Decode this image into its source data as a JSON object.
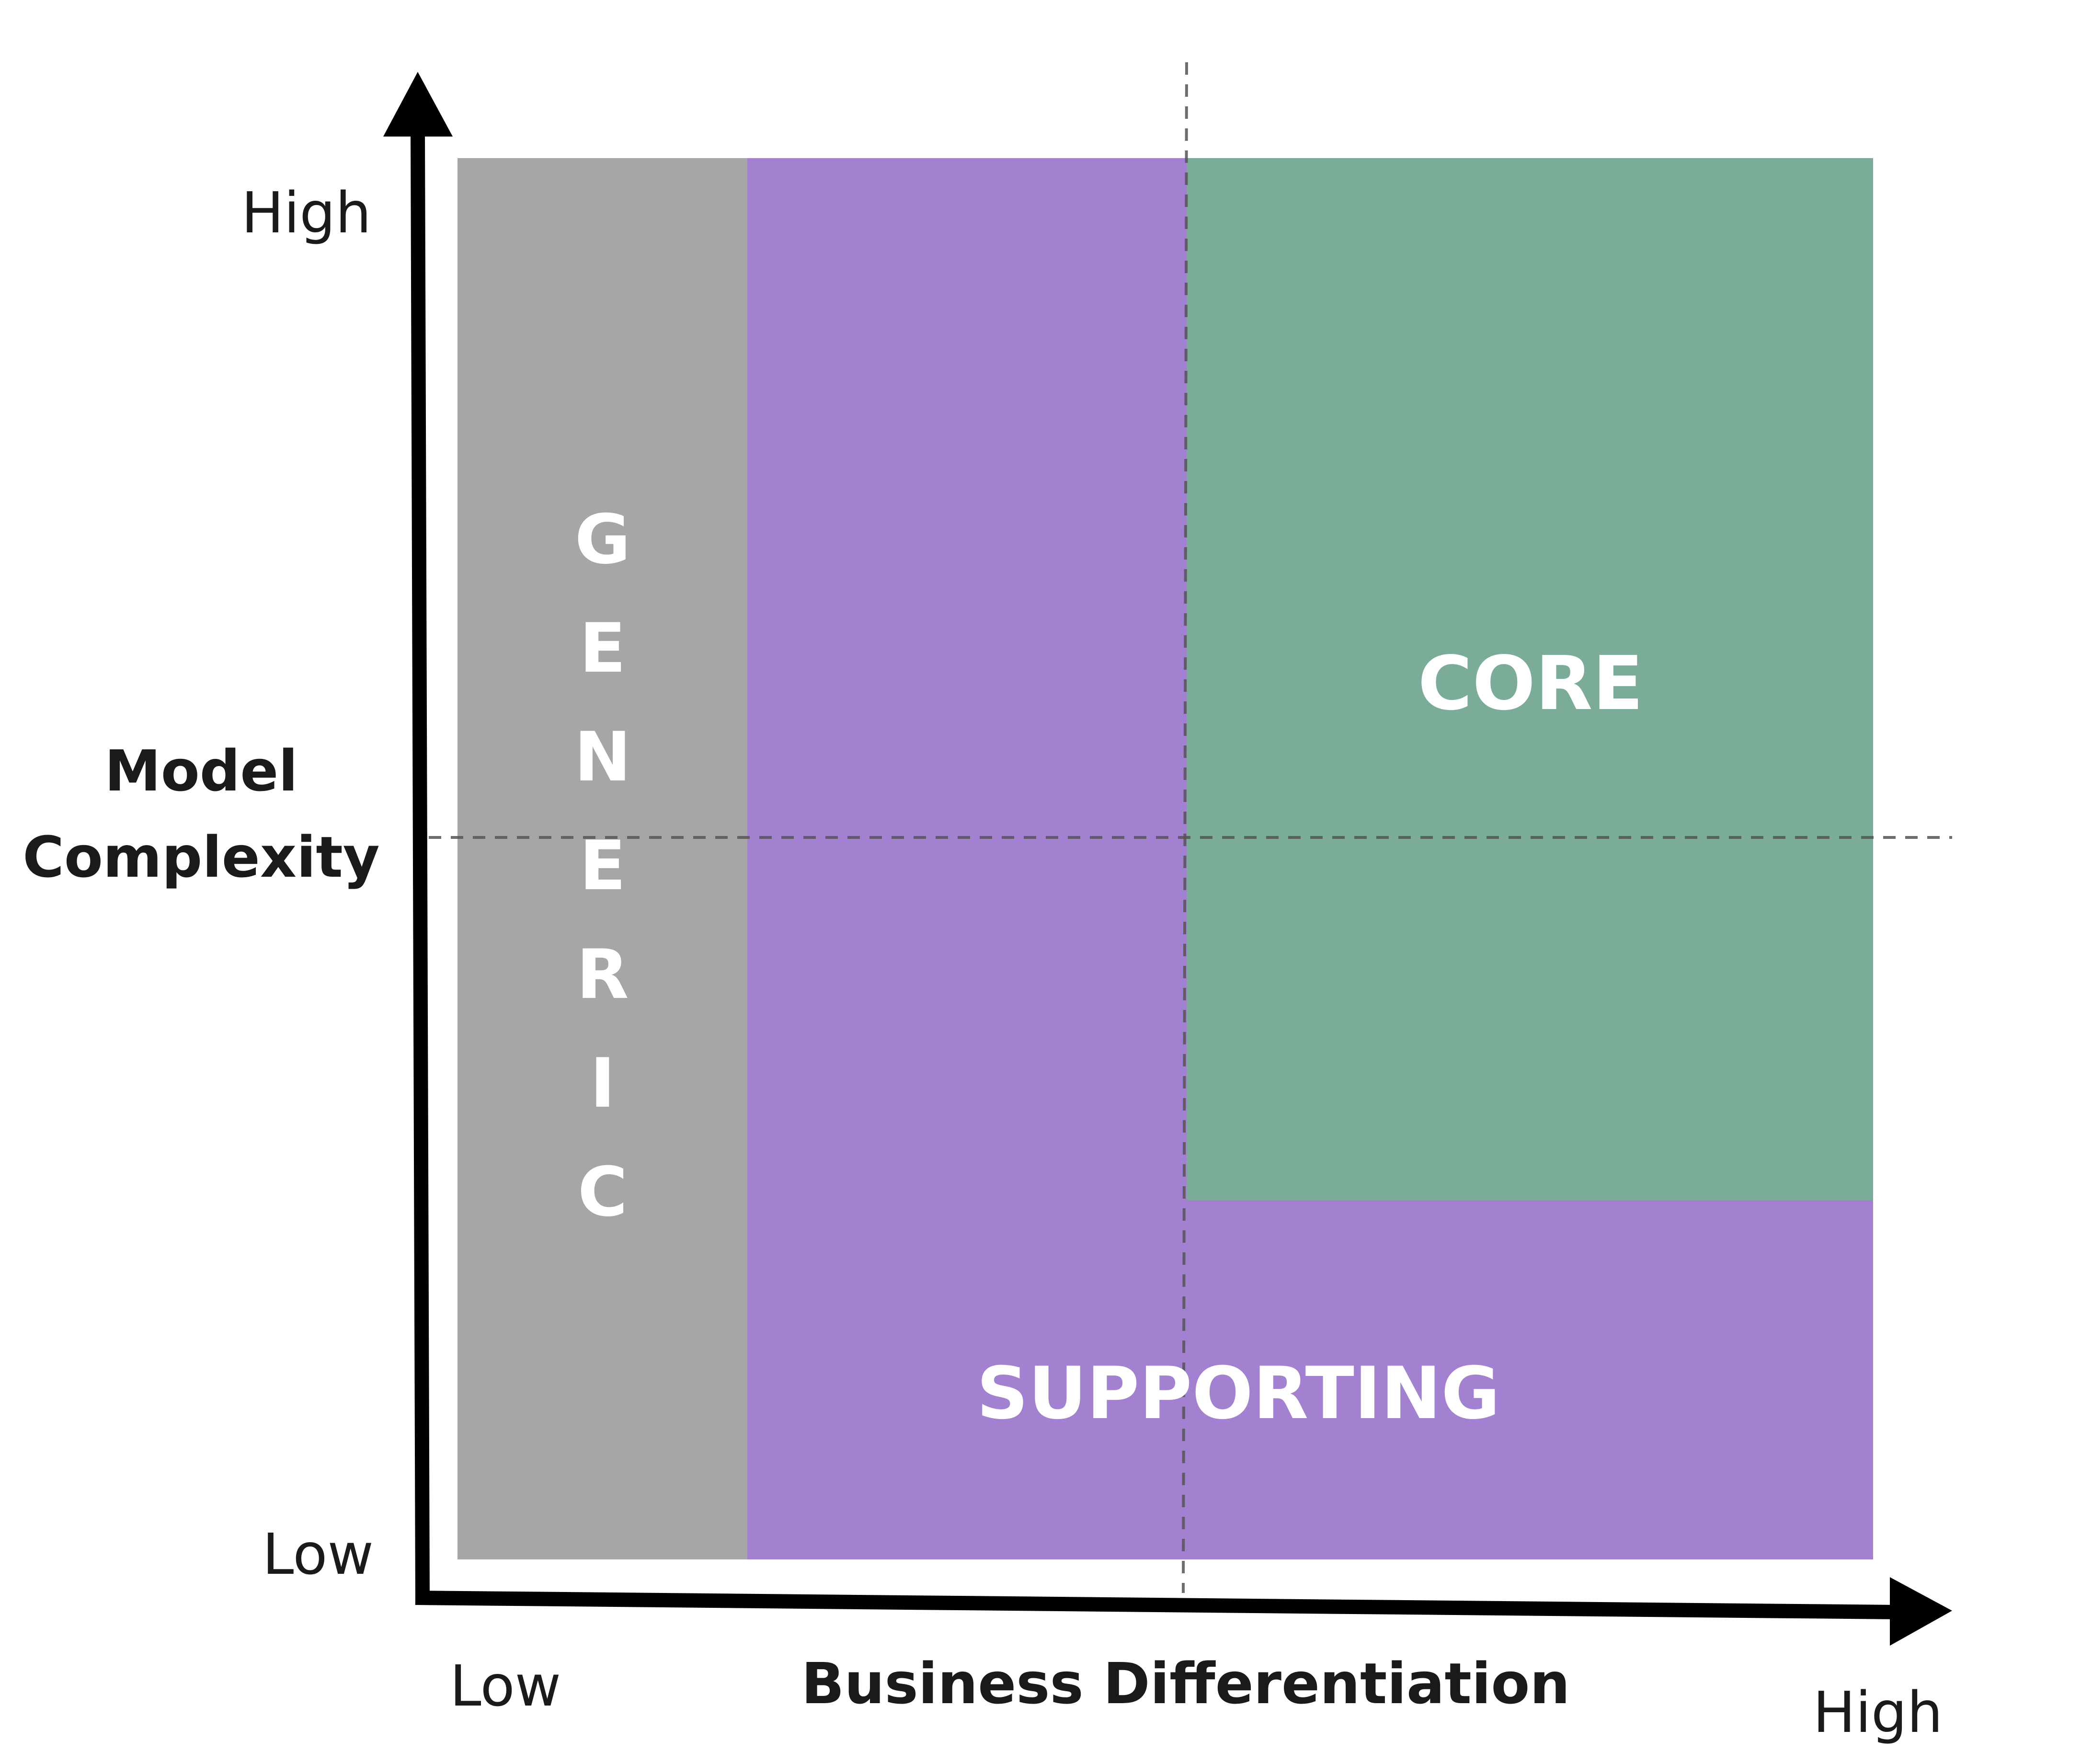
{
  "regions": {
    "generic": {
      "label": "GENERIC",
      "color": "#a6a6a6"
    },
    "supporting": {
      "label": "SUPPORTING",
      "color": "#a281d1"
    },
    "core": {
      "label": "CORE",
      "color": "#7aac98"
    }
  },
  "y_axis": {
    "title_line1": "Model",
    "title_line2": "Complexity",
    "high_label": "High",
    "low_label": "Low"
  },
  "x_axis": {
    "title": "Business Differentiation",
    "low_label": "Low",
    "high_label": "High"
  },
  "colors": {
    "axis": "#000000",
    "divider": "#555555",
    "text": "#1a1a1a"
  }
}
